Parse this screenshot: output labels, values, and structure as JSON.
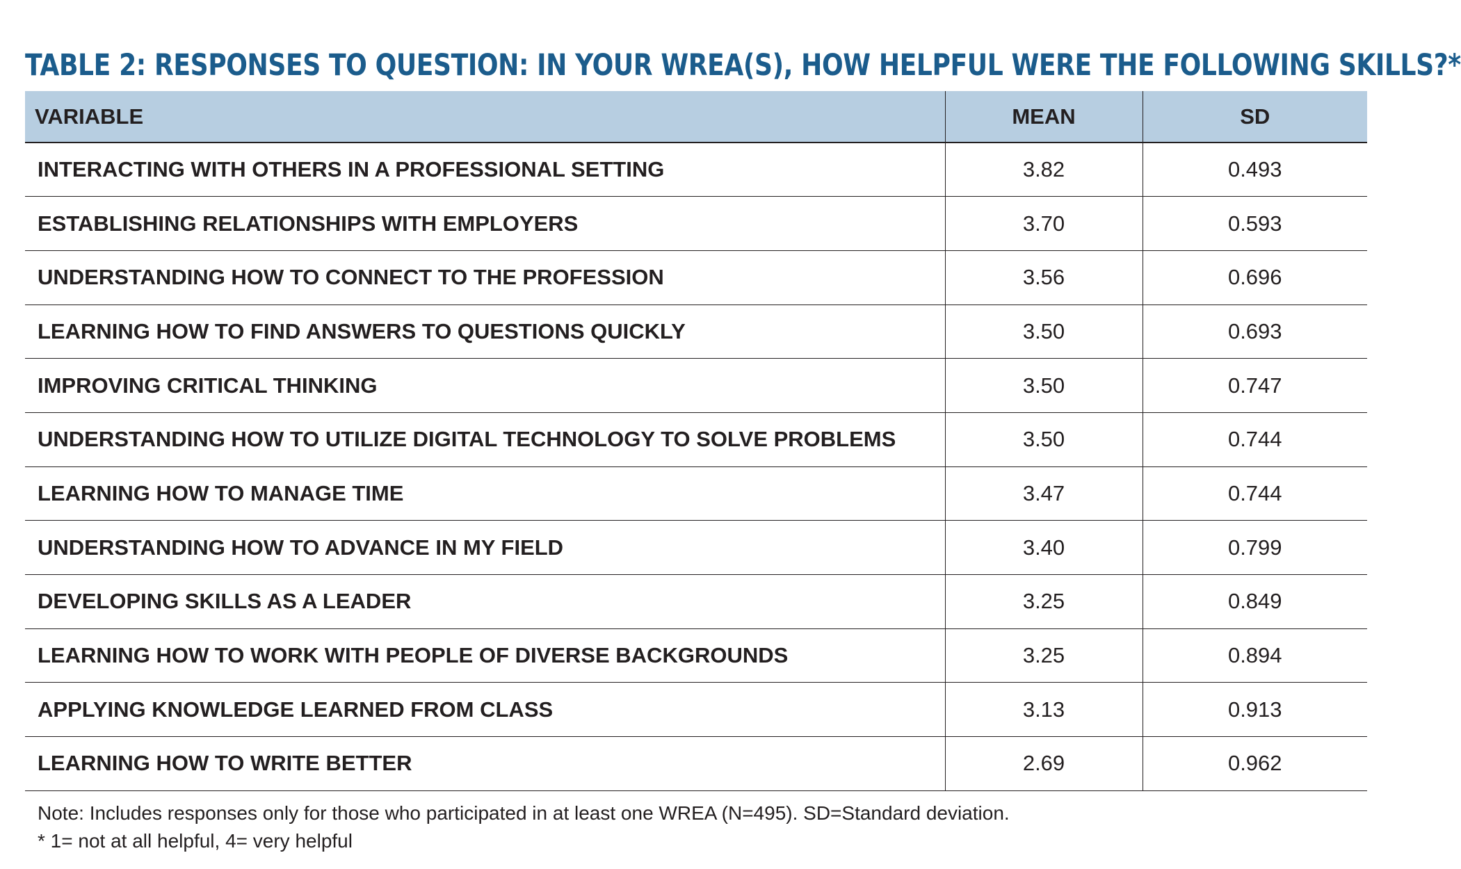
{
  "title": "TABLE 2: RESPONSES TO QUESTION: IN YOUR WREA(S), HOW HELPFUL WERE THE FOLLOWING SKILLS?*",
  "colors": {
    "title": "#1b5c8c",
    "header_background": "#b7cee1",
    "rule": "#231f20"
  },
  "chart_data": {
    "type": "table",
    "title": "TABLE 2: RESPONSES TO QUESTION: IN YOUR WREA(S), HOW HELPFUL WERE THE FOLLOWING SKILLS?*",
    "columns": [
      "VARIABLE",
      "MEAN",
      "SD"
    ],
    "rows": [
      {
        "variable": "INTERACTING WITH OTHERS IN A PROFESSIONAL SETTING",
        "mean": "3.82",
        "sd": "0.493"
      },
      {
        "variable": "ESTABLISHING RELATIONSHIPS WITH EMPLOYERS",
        "mean": "3.70",
        "sd": "0.593"
      },
      {
        "variable": "UNDERSTANDING HOW TO CONNECT TO THE PROFESSION",
        "mean": "3.56",
        "sd": "0.696"
      },
      {
        "variable": "LEARNING HOW TO FIND ANSWERS TO QUESTIONS QUICKLY",
        "mean": "3.50",
        "sd": "0.693"
      },
      {
        "variable": "IMPROVING CRITICAL THINKING",
        "mean": "3.50",
        "sd": "0.747"
      },
      {
        "variable": "UNDERSTANDING HOW TO UTILIZE DIGITAL TECHNOLOGY TO SOLVE PROBLEMS",
        "mean": "3.50",
        "sd": "0.744"
      },
      {
        "variable": "LEARNING HOW TO MANAGE TIME",
        "mean": "3.47",
        "sd": "0.744"
      },
      {
        "variable": "UNDERSTANDING HOW TO ADVANCE IN MY FIELD",
        "mean": "3.40",
        "sd": "0.799"
      },
      {
        "variable": "DEVELOPING SKILLS AS A LEADER",
        "mean": "3.25",
        "sd": "0.849"
      },
      {
        "variable": "LEARNING HOW TO WORK WITH PEOPLE OF DIVERSE BACKGROUNDS",
        "mean": "3.25",
        "sd": "0.894"
      },
      {
        "variable": "APPLYING KNOWLEDGE LEARNED FROM CLASS",
        "mean": "3.13",
        "sd": "0.913"
      },
      {
        "variable": "LEARNING HOW TO WRITE BETTER",
        "mean": "2.69",
        "sd": "0.962"
      }
    ]
  },
  "notes": [
    "Note: Includes responses only for those who participated in at least one WREA (N=495). SD=Standard deviation.",
    "* 1= not at all helpful, 4= very helpful"
  ]
}
